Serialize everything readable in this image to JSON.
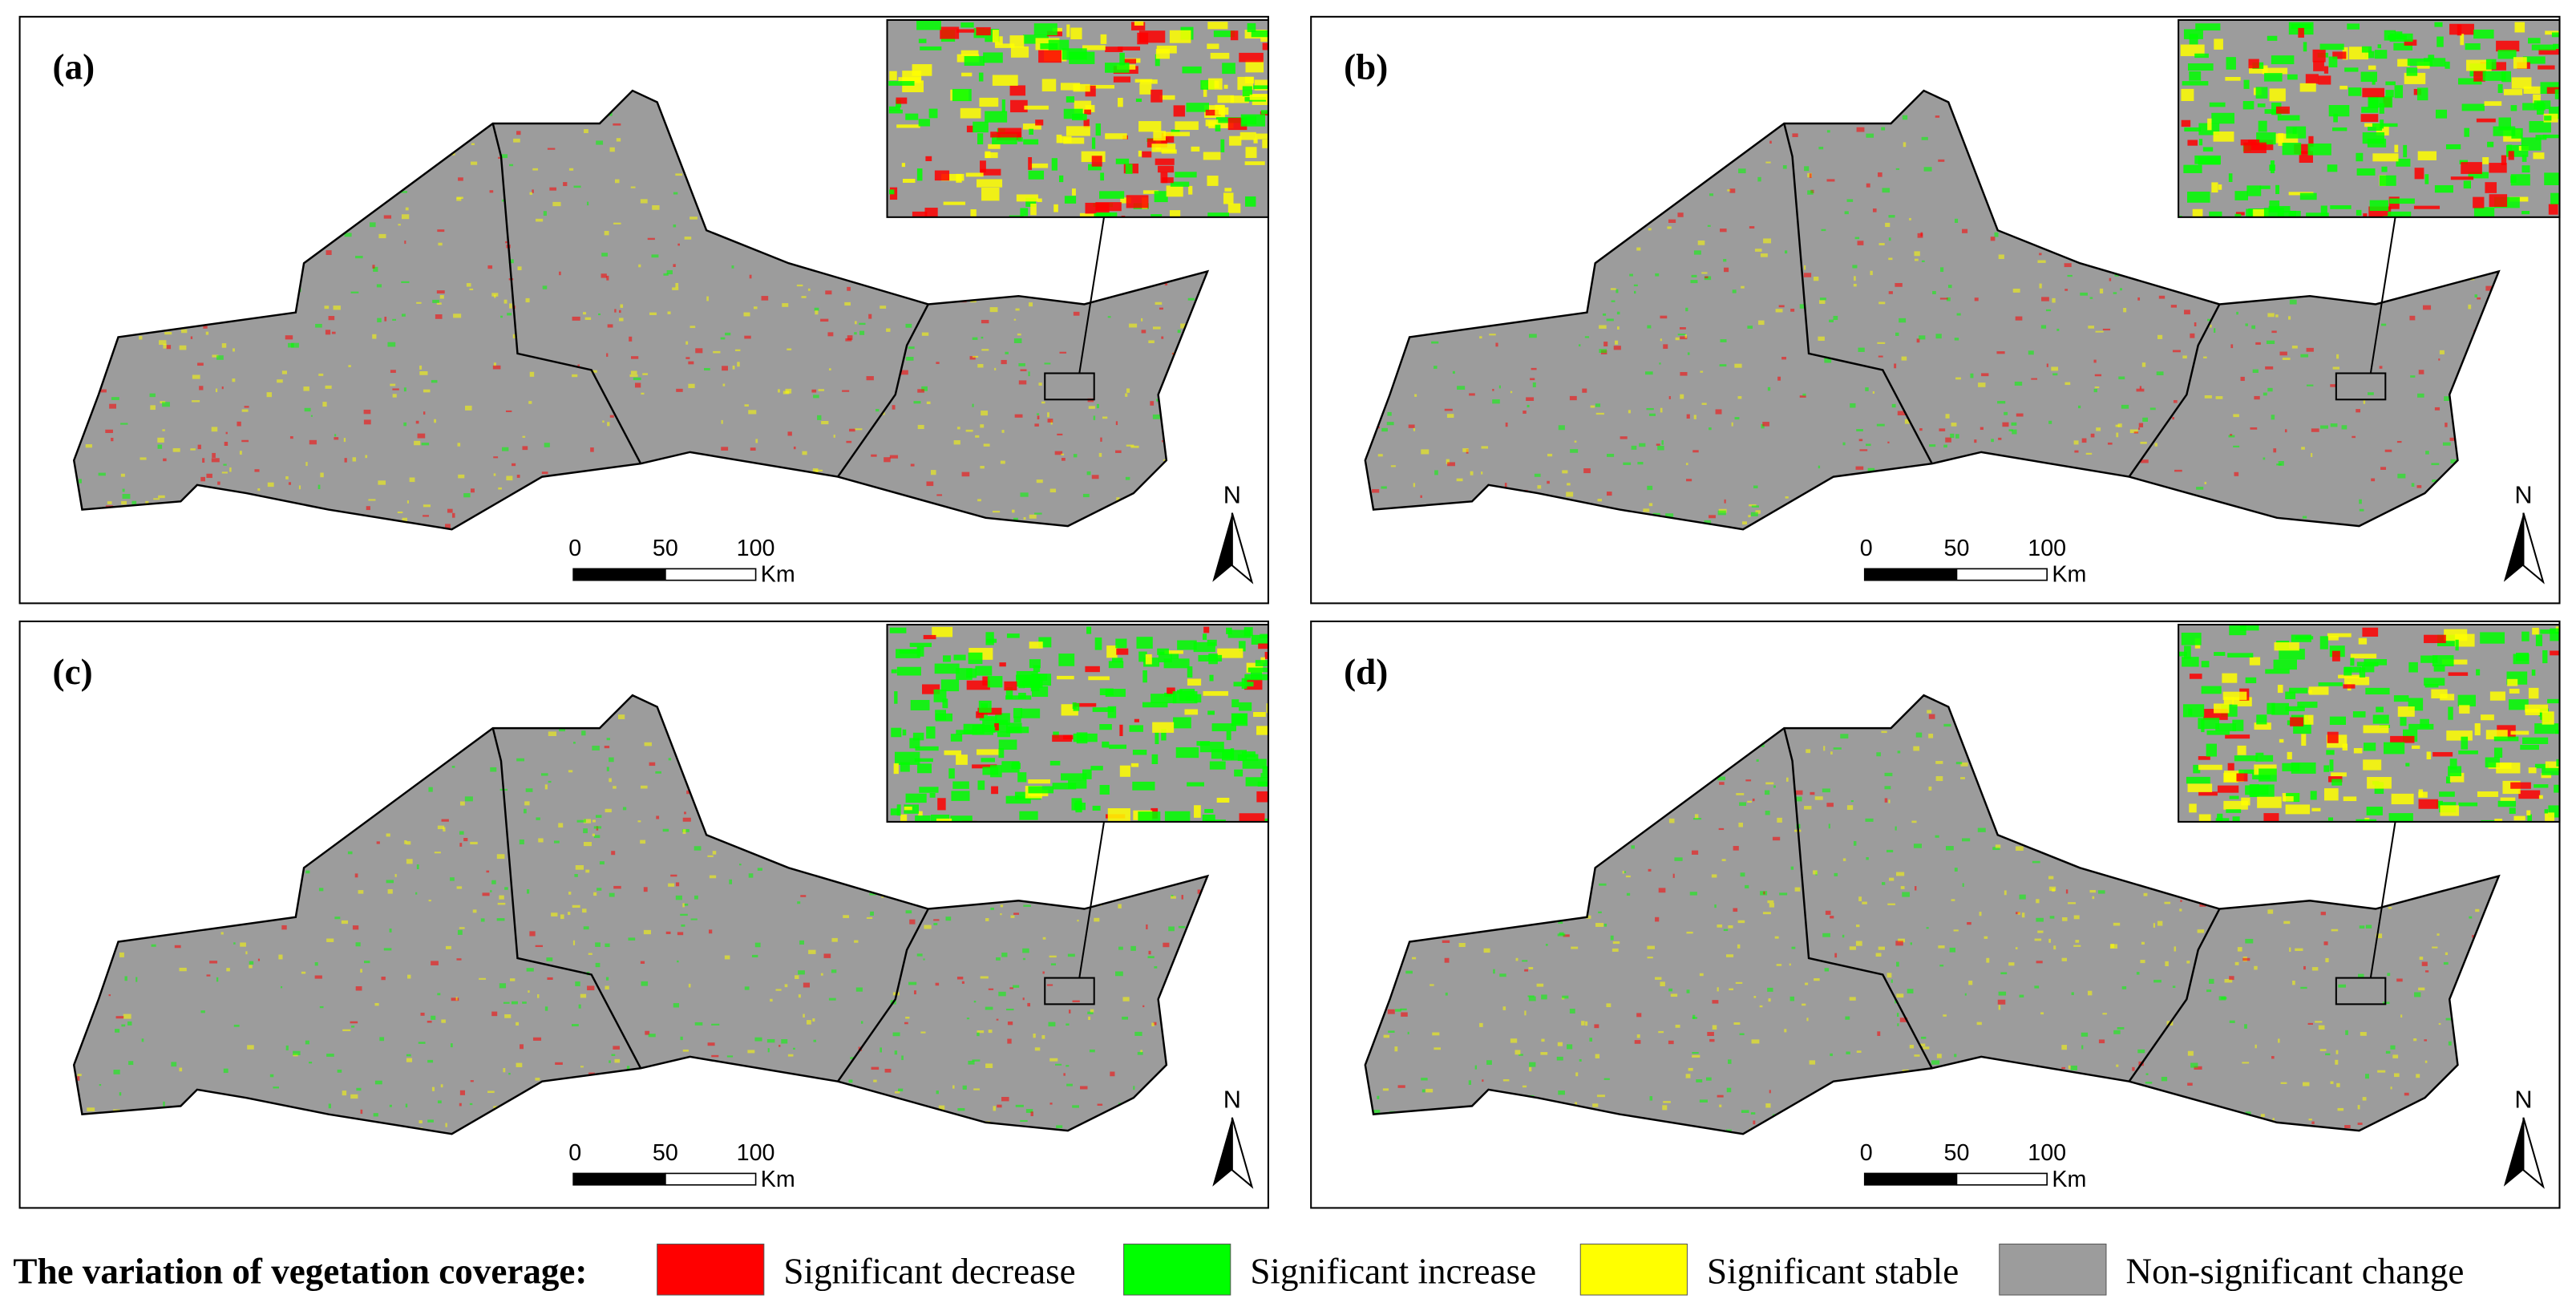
{
  "panels": [
    {
      "label": "(a)",
      "scale_bar": {
        "ticks": [
          "0",
          "50",
          "100"
        ],
        "unit": "Km"
      },
      "north": "N"
    },
    {
      "label": "(b)",
      "scale_bar": {
        "ticks": [
          "0",
          "50",
          "100"
        ],
        "unit": "Km"
      },
      "north": "N"
    },
    {
      "label": "(c)",
      "scale_bar": {
        "ticks": [
          "0",
          "50",
          "100"
        ],
        "unit": "Km"
      },
      "north": "N"
    },
    {
      "label": "(d)",
      "scale_bar": {
        "ticks": [
          "0",
          "50",
          "100"
        ],
        "unit": "Km"
      },
      "north": "N"
    }
  ],
  "legend": {
    "title": "The variation of vegetation coverage:",
    "items": [
      {
        "label": "Significant decrease",
        "color": "#ff0000"
      },
      {
        "label": "Significant increase",
        "color": "#00ff00"
      },
      {
        "label": "Significant stable",
        "color": "#ffff00"
      },
      {
        "label": "Non-significant change",
        "color": "#9c9c9c"
      }
    ]
  }
}
